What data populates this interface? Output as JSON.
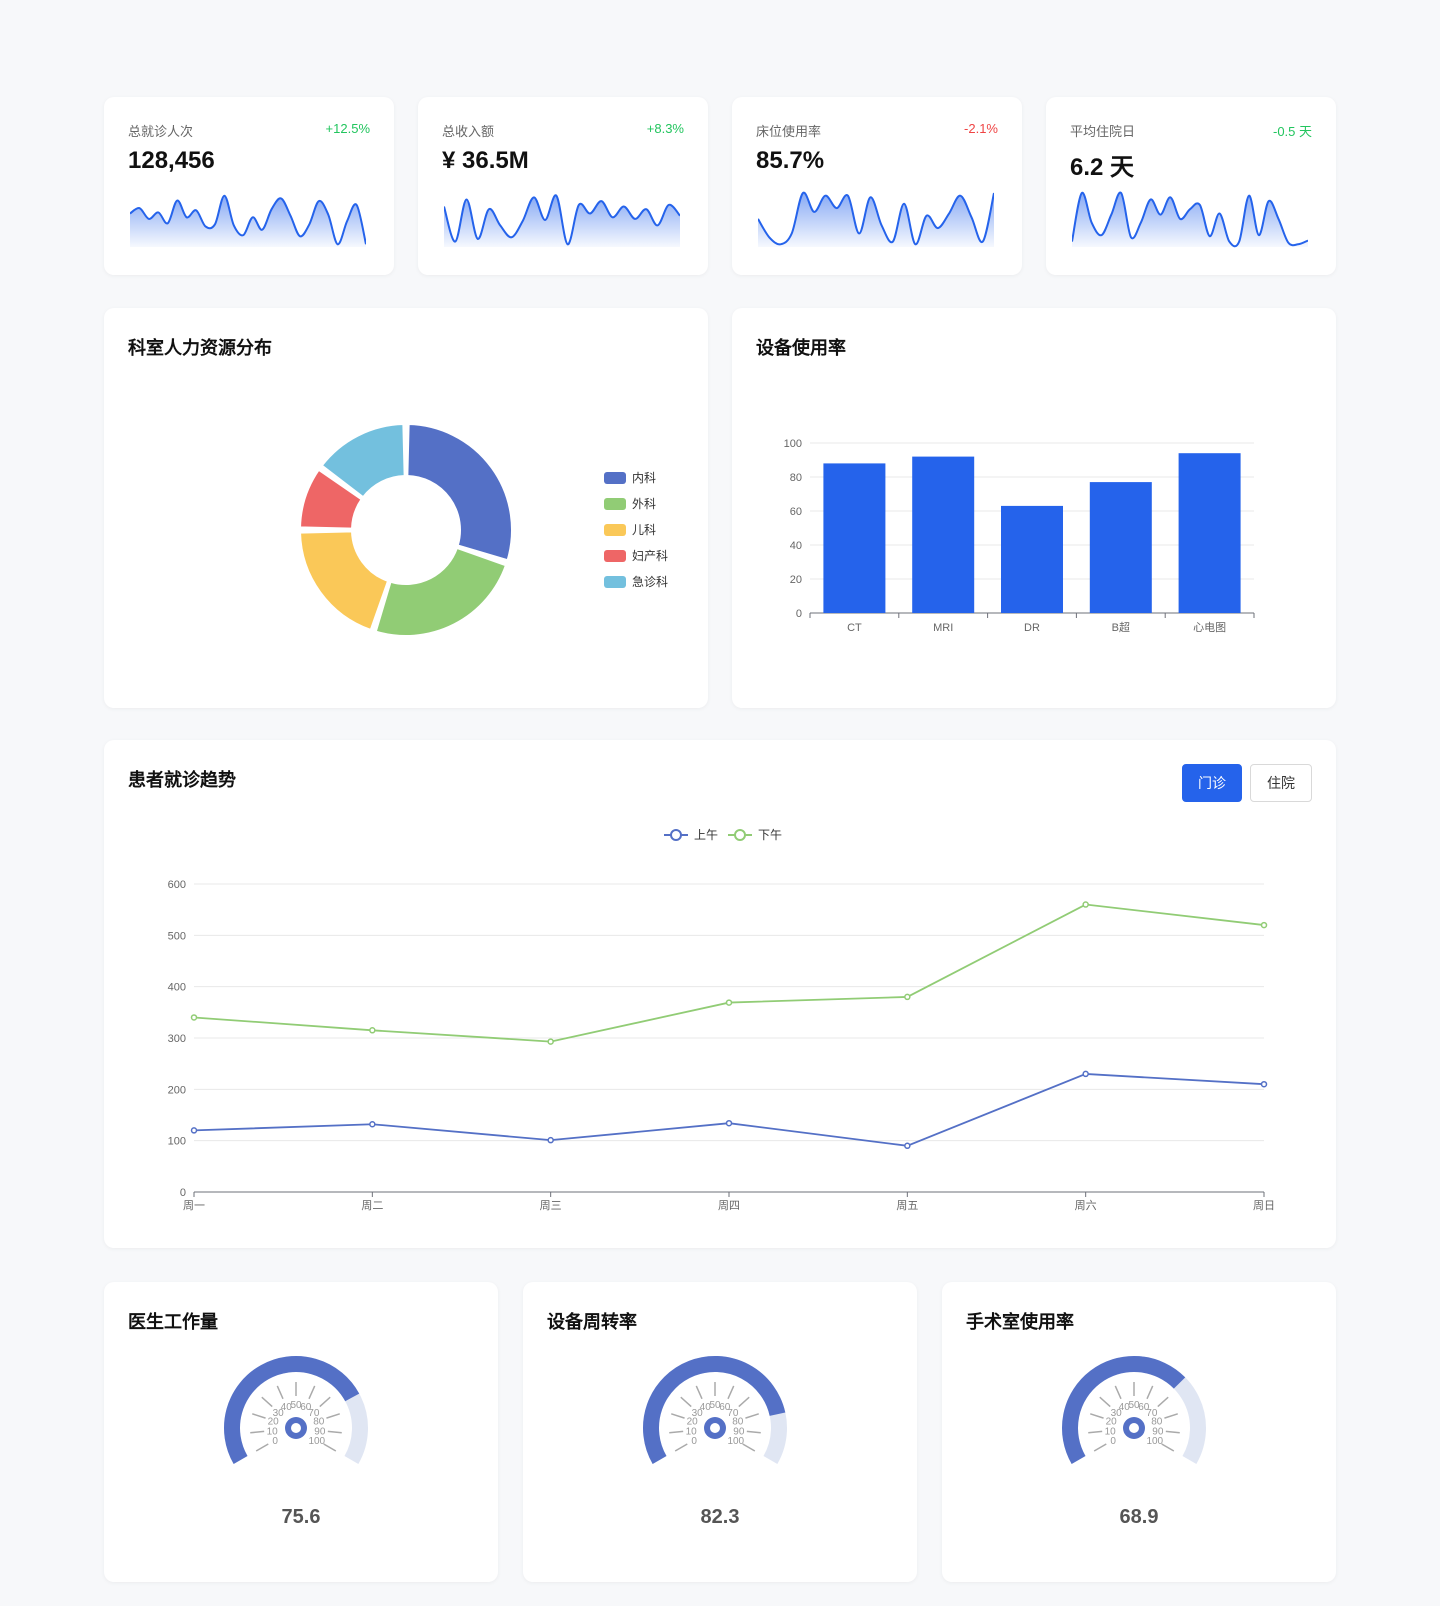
{
  "kpis": [
    {
      "label": "总就诊人次",
      "value": "128,456",
      "change": "+12.5%",
      "change_color": "#22c55e",
      "spark": [
        0.62,
        0.72,
        0.52,
        0.64,
        0.44,
        0.86,
        0.55,
        0.68,
        0.38,
        0.42,
        0.95,
        0.4,
        0.22,
        0.55,
        0.32,
        0.7,
        0.9,
        0.58,
        0.2,
        0.42,
        0.85,
        0.6,
        0.05,
        0.48,
        0.78,
        0.05
      ]
    },
    {
      "label": "总收入额",
      "value": "¥ 36.5M",
      "change": "+8.3%",
      "change_color": "#22c55e",
      "spark": [
        0.75,
        0.1,
        0.88,
        0.15,
        0.7,
        0.4,
        0.18,
        0.48,
        0.92,
        0.5,
        0.95,
        0.05,
        0.78,
        0.62,
        0.85,
        0.55,
        0.75,
        0.52,
        0.7,
        0.4,
        0.78,
        0.58
      ]
    },
    {
      "label": "床位使用率",
      "value": "85.7%",
      "change": "-2.1%",
      "change_color": "#ef4444",
      "spark": [
        0.52,
        0.18,
        0.05,
        0.25,
        1.0,
        0.65,
        0.95,
        0.72,
        0.95,
        0.25,
        0.92,
        0.4,
        0.1,
        0.8,
        0.05,
        0.58,
        0.35,
        0.62,
        0.95,
        0.55,
        0.1,
        1.0
      ]
    },
    {
      "label": "平均住院日",
      "value": "6.2 天",
      "change": "-0.5 天",
      "change_color": "#22c55e",
      "spark": [
        0.1,
        1.0,
        0.45,
        0.22,
        0.6,
        1.0,
        0.18,
        0.45,
        0.88,
        0.6,
        0.92,
        0.52,
        0.7,
        0.78,
        0.2,
        0.62,
        0.1,
        0.1,
        0.95,
        0.22,
        0.85,
        0.52,
        0.08,
        0.05,
        0.12
      ]
    }
  ],
  "hr_panel": {
    "title": "科室人力资源分布",
    "chart_data": {
      "type": "pie",
      "donut": true,
      "slices": [
        {
          "label": "内科",
          "value": 30,
          "color": "#5470c6"
        },
        {
          "label": "外科",
          "value": 25,
          "color": "#91cc75"
        },
        {
          "label": "儿科",
          "value": 20,
          "color": "#fac858"
        },
        {
          "label": "妇产科",
          "value": 10,
          "color": "#ee6666"
        },
        {
          "label": "急诊科",
          "value": 15,
          "color": "#73c0de"
        }
      ]
    }
  },
  "equipment_panel": {
    "title": "设备使用率",
    "chart_data": {
      "type": "bar",
      "categories": [
        "CT",
        "MRI",
        "DR",
        "B超",
        "心电图"
      ],
      "values": [
        88,
        92,
        63,
        77,
        94
      ],
      "ylim": [
        0,
        100
      ],
      "yticks": [
        0,
        20,
        40,
        60,
        80,
        100
      ],
      "color": "#2563eb"
    }
  },
  "trend_panel": {
    "title": "患者就诊趋势",
    "buttons": {
      "outpatient": "门诊",
      "inpatient": "住院"
    },
    "chart_data": {
      "type": "line",
      "categories": [
        "周一",
        "周二",
        "周三",
        "周四",
        "周五",
        "周六",
        "周日"
      ],
      "series": [
        {
          "name": "上午",
          "values": [
            120,
            132,
            101,
            134,
            90,
            230,
            210
          ],
          "color": "#5470c6"
        },
        {
          "name": "下午",
          "values": [
            340,
            315,
            293,
            369,
            380,
            560,
            520
          ],
          "color": "#91cc75"
        }
      ],
      "ylim": [
        0,
        600
      ],
      "yticks": [
        0,
        100,
        200,
        300,
        400,
        500,
        600
      ]
    }
  },
  "gauges": [
    {
      "title": "医生工作量",
      "value": 75.6,
      "display": "75.6"
    },
    {
      "title": "设备周转率",
      "value": 82.3,
      "display": "82.3"
    },
    {
      "title": "手术室使用率",
      "value": 68.9,
      "display": "68.9"
    }
  ],
  "gauge_scale": {
    "ticks": [
      "0",
      "10",
      "20",
      "30",
      "40",
      "50",
      "60",
      "70",
      "80",
      "90",
      "100"
    ]
  },
  "colors": {
    "accent": "#2563eb",
    "gauge_fill": "#5470c6",
    "gauge_track": "#e0e6f3"
  }
}
